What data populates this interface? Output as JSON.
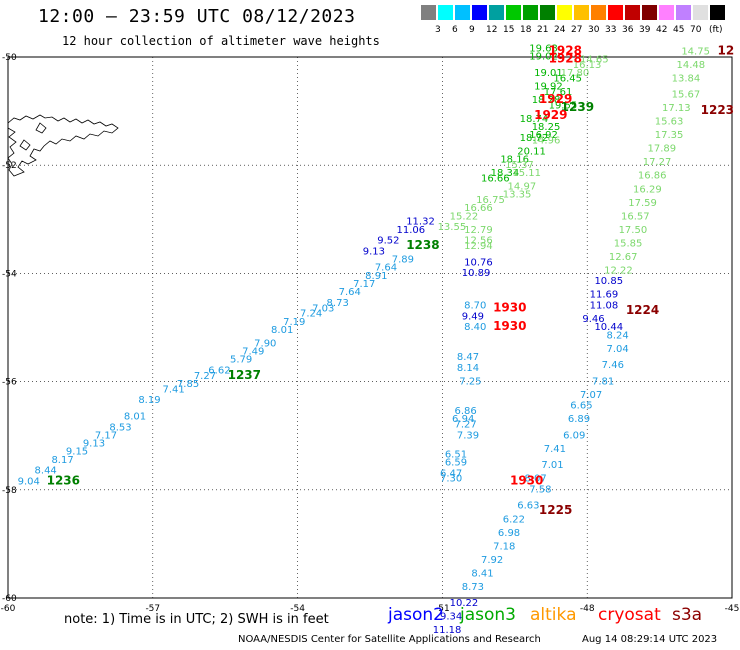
{
  "title": "12:00 – 23:59 UTC 08/12/2023",
  "subtitle": "12 hour collection of altimeter wave heights",
  "scale": {
    "unit": "(ft)",
    "colors": [
      "#808080",
      "#00ffff",
      "#00c0ff",
      "#0000ff",
      "#00a0a0",
      "#00c800",
      "#00a000",
      "#008000",
      "#ffff00",
      "#ffc000",
      "#ff8000",
      "#ff0000",
      "#c00000",
      "#800000",
      "#ff80ff",
      "#c080ff",
      "#e0e0e0",
      "#000000"
    ],
    "labels": [
      "3",
      "6",
      "9",
      "12",
      "15",
      "18",
      "21",
      "24",
      "27",
      "30",
      "33",
      "36",
      "39",
      "42",
      "45",
      "70"
    ]
  },
  "axes": {
    "lat_labels": [
      "-50",
      "-52",
      "-54",
      "-56",
      "-58",
      "-60"
    ],
    "lon_labels": [
      "-60",
      "-57",
      "-54",
      "-51",
      "-48",
      "-45"
    ]
  },
  "chart_data": {
    "type": "scatter",
    "projection": "lat-lon",
    "xlim": [
      -60,
      -45
    ],
    "ylim": [
      -60,
      -50
    ],
    "grid": true,
    "passes": [
      {
        "color": "#1e9be0",
        "points": [
          {
            "lon": -59.8,
            "lat": -57.9,
            "v": "9.04"
          },
          {
            "lon": -59.45,
            "lat": -57.7,
            "v": "8.44"
          },
          {
            "lon": -59.1,
            "lat": -57.5,
            "v": "8.17"
          },
          {
            "lon": -58.8,
            "lat": -57.35,
            "v": "9.15"
          },
          {
            "lon": -58.45,
            "lat": -57.2,
            "v": "9.13"
          },
          {
            "lon": -58.2,
            "lat": -57.05,
            "v": "7.17"
          },
          {
            "lon": -57.9,
            "lat": -56.9,
            "v": "8.53"
          },
          {
            "lon": -57.6,
            "lat": -56.7,
            "v": "8.01"
          },
          {
            "lon": -57.3,
            "lat": -56.4,
            "v": "8.19"
          },
          {
            "lon": -56.8,
            "lat": -56.2,
            "v": "7.41"
          },
          {
            "lon": -56.5,
            "lat": -56.1,
            "v": "7.85"
          },
          {
            "lon": -56.15,
            "lat": -55.95,
            "v": "7.27"
          },
          {
            "lon": -55.85,
            "lat": -55.85,
            "v": "6.62"
          },
          {
            "lon": -55.4,
            "lat": -55.65,
            "v": "5.79"
          },
          {
            "lon": -55.15,
            "lat": -55.5,
            "v": "7.49"
          },
          {
            "lon": -54.9,
            "lat": -55.35,
            "v": "7.90"
          },
          {
            "lon": -54.55,
            "lat": -55.1,
            "v": "8.01"
          },
          {
            "lon": -54.3,
            "lat": -54.95,
            "v": "7.19"
          },
          {
            "lon": -53.95,
            "lat": -54.8,
            "v": "7.24"
          },
          {
            "lon": -53.7,
            "lat": -54.7,
            "v": "7.03"
          },
          {
            "lon": -53.4,
            "lat": -54.6,
            "v": "8.73"
          },
          {
            "lon": -53.15,
            "lat": -54.4,
            "v": "7.64"
          },
          {
            "lon": -52.85,
            "lat": -54.25,
            "v": "7.17"
          },
          {
            "lon": -52.6,
            "lat": -54.1,
            "v": "8.91"
          },
          {
            "lon": -52.4,
            "lat": -53.95,
            "v": "7.64"
          },
          {
            "lon": -52.05,
            "lat": -53.8,
            "v": "7.89"
          }
        ]
      },
      {
        "color": "#1e9be0",
        "points": [
          {
            "lon": -50.55,
            "lat": -54.65,
            "v": "8.70"
          },
          {
            "lon": -50.55,
            "lat": -55.05,
            "v": "8.40"
          },
          {
            "lon": -50.7,
            "lat": -55.6,
            "v": "8.47"
          },
          {
            "lon": -50.7,
            "lat": -55.8,
            "v": "8.14"
          },
          {
            "lon": -50.65,
            "lat": -56.05,
            "v": "7.25"
          },
          {
            "lon": -50.75,
            "lat": -56.6,
            "v": "6.86"
          },
          {
            "lon": -50.8,
            "lat": -56.75,
            "v": "6.94"
          },
          {
            "lon": -50.75,
            "lat": -56.85,
            "v": "7.27"
          },
          {
            "lon": -50.7,
            "lat": -57.05,
            "v": "7.39"
          },
          {
            "lon": -50.95,
            "lat": -57.4,
            "v": "6.51"
          },
          {
            "lon": -50.95,
            "lat": -57.55,
            "v": "6.59"
          },
          {
            "lon": -51.05,
            "lat": -57.75,
            "v": "6.47"
          },
          {
            "lon": -51.05,
            "lat": -57.85,
            "v": "7.30"
          }
        ]
      },
      {
        "color": "#1e9be0",
        "points": [
          {
            "lon": -47.6,
            "lat": -55.2,
            "v": "8.24"
          },
          {
            "lon": -47.6,
            "lat": -55.45,
            "v": "7.04"
          },
          {
            "lon": -47.7,
            "lat": -55.75,
            "v": "7.46"
          },
          {
            "lon": -47.9,
            "lat": -56.05,
            "v": "7.81"
          },
          {
            "lon": -48.15,
            "lat": -56.3,
            "v": "7.07"
          },
          {
            "lon": -48.35,
            "lat": -56.5,
            "v": "6.65"
          },
          {
            "lon": -48.4,
            "lat": -56.75,
            "v": "6.89"
          },
          {
            "lon": -48.5,
            "lat": -57.05,
            "v": "6.09"
          },
          {
            "lon": -48.9,
            "lat": -57.3,
            "v": "7.41"
          },
          {
            "lon": -48.95,
            "lat": -57.6,
            "v": "7.01"
          },
          {
            "lon": -49.3,
            "lat": -57.85,
            "v": "8.07"
          },
          {
            "lon": -49.2,
            "lat": -58.05,
            "v": "7.58"
          },
          {
            "lon": -49.45,
            "lat": -58.35,
            "v": "6.63"
          },
          {
            "lon": -49.75,
            "lat": -58.6,
            "v": "6.22"
          },
          {
            "lon": -49.85,
            "lat": -58.85,
            "v": "6.98"
          },
          {
            "lon": -49.95,
            "lat": -59.1,
            "v": "7.18"
          },
          {
            "lon": -50.2,
            "lat": -59.35,
            "v": "7.92"
          },
          {
            "lon": -50.4,
            "lat": -59.6,
            "v": "8.41"
          },
          {
            "lon": -50.6,
            "lat": -59.85,
            "v": "8.73"
          }
        ]
      },
      {
        "color": "#0000cc",
        "points": [
          {
            "lon": -52.65,
            "lat": -53.65,
            "v": "9.13"
          },
          {
            "lon": -52.35,
            "lat": -53.45,
            "v": "9.52"
          },
          {
            "lon": -51.95,
            "lat": -53.25,
            "v": "11.06"
          },
          {
            "lon": -51.75,
            "lat": -53.1,
            "v": "11.32"
          },
          {
            "lon": -50.55,
            "lat": -53.85,
            "v": "10.76"
          },
          {
            "lon": -50.6,
            "lat": -54.05,
            "v": "10.89"
          },
          {
            "lon": -50.6,
            "lat": -54.85,
            "v": "9.49"
          },
          {
            "lon": -47.85,
            "lat": -54.2,
            "v": "10.85"
          },
          {
            "lon": -47.95,
            "lat": -54.45,
            "v": "11.69"
          },
          {
            "lon": -47.95,
            "lat": -54.65,
            "v": "11.08"
          },
          {
            "lon": -48.1,
            "lat": -54.9,
            "v": "9.46"
          },
          {
            "lon": -47.85,
            "lat": -55.05,
            "v": "10.44"
          },
          {
            "lon": -50.85,
            "lat": -60.15,
            "v": "10.22"
          },
          {
            "lon": -51.05,
            "lat": -60.4,
            "v": "9.34"
          },
          {
            "lon": -51.2,
            "lat": -60.65,
            "v": "11.18"
          }
        ]
      },
      {
        "color": "#00b400",
        "points": [
          {
            "lon": -49.2,
            "lat": -49.9,
            "v": "19.63"
          },
          {
            "lon": -49.2,
            "lat": -50.05,
            "v": "19.02"
          },
          {
            "lon": -49.1,
            "lat": -50.35,
            "v": "19.01"
          },
          {
            "lon": -49.1,
            "lat": -50.6,
            "v": "19.92"
          },
          {
            "lon": -49.15,
            "lat": -50.85,
            "v": "18.28"
          },
          {
            "lon": -48.7,
            "lat": -50.45,
            "v": "16.45"
          },
          {
            "lon": -48.9,
            "lat": -50.7,
            "v": "17.61"
          },
          {
            "lon": -48.8,
            "lat": -50.95,
            "v": "19.55"
          },
          {
            "lon": -49.4,
            "lat": -51.2,
            "v": "18.74"
          },
          {
            "lon": -49.15,
            "lat": -51.35,
            "v": "18.25"
          },
          {
            "lon": -49.2,
            "lat": -51.5,
            "v": "16.92"
          },
          {
            "lon": -49.4,
            "lat": -51.55,
            "v": "18.72"
          },
          {
            "lon": -49.45,
            "lat": -51.8,
            "v": "20.11"
          },
          {
            "lon": -49.8,
            "lat": -51.95,
            "v": "18.16"
          },
          {
            "lon": -50.0,
            "lat": -52.2,
            "v": "18.34"
          },
          {
            "lon": -50.2,
            "lat": -52.3,
            "v": "16.66"
          }
        ]
      },
      {
        "color": "#7cd86c",
        "points": [
          {
            "lon": -48.15,
            "lat": -50.1,
            "v": "14.65"
          },
          {
            "lon": -48.3,
            "lat": -50.2,
            "v": "16.13"
          },
          {
            "lon": -48.55,
            "lat": -50.35,
            "v": "17.80"
          },
          {
            "lon": -49.15,
            "lat": -51.6,
            "v": "14.96"
          },
          {
            "lon": -49.7,
            "lat": -52.05,
            "v": "15.37"
          },
          {
            "lon": -49.55,
            "lat": -52.2,
            "v": "15.11"
          },
          {
            "lon": -49.65,
            "lat": -52.45,
            "v": "14.97"
          },
          {
            "lon": -49.75,
            "lat": -52.6,
            "v": "13.35"
          },
          {
            "lon": -50.3,
            "lat": -52.7,
            "v": "16.75"
          },
          {
            "lon": -50.55,
            "lat": -52.85,
            "v": "16.66"
          },
          {
            "lon": -50.85,
            "lat": -53.0,
            "v": "15.22"
          },
          {
            "lon": -51.1,
            "lat": -53.2,
            "v": "13.55"
          },
          {
            "lon": -50.55,
            "lat": -53.25,
            "v": "12.79"
          },
          {
            "lon": -50.55,
            "lat": -53.45,
            "v": "12.56"
          },
          {
            "lon": -50.55,
            "lat": -53.55,
            "v": "12.94"
          },
          {
            "lon": -46.05,
            "lat": -49.95,
            "v": "14.75"
          },
          {
            "lon": -46.15,
            "lat": -50.2,
            "v": "14.48"
          },
          {
            "lon": -46.25,
            "lat": -50.45,
            "v": "13.84"
          },
          {
            "lon": -46.25,
            "lat": -50.75,
            "v": "15.67"
          },
          {
            "lon": -46.45,
            "lat": -51.0,
            "v": "17.13"
          },
          {
            "lon": -46.6,
            "lat": -51.25,
            "v": "15.63"
          },
          {
            "lon": -46.6,
            "lat": -51.5,
            "v": "17.35"
          },
          {
            "lon": -46.75,
            "lat": -51.75,
            "v": "17.89"
          },
          {
            "lon": -46.85,
            "lat": -52.0,
            "v": "17.27"
          },
          {
            "lon": -46.95,
            "lat": -52.25,
            "v": "16.86"
          },
          {
            "lon": -47.05,
            "lat": -52.5,
            "v": "16.29"
          },
          {
            "lon": -47.15,
            "lat": -52.75,
            "v": "17.59"
          },
          {
            "lon": -47.3,
            "lat": -53.0,
            "v": "16.57"
          },
          {
            "lon": -47.35,
            "lat": -53.25,
            "v": "17.50"
          },
          {
            "lon": -47.45,
            "lat": -53.5,
            "v": "15.85"
          },
          {
            "lon": -47.55,
            "lat": -53.75,
            "v": "12.67"
          },
          {
            "lon": -47.65,
            "lat": -54.0,
            "v": "12.22"
          }
        ]
      }
    ],
    "time_labels": [
      {
        "text": "1236",
        "color": "#008000",
        "lon": -59.2,
        "lat": -57.9
      },
      {
        "text": "1237",
        "color": "#008000",
        "lon": -55.45,
        "lat": -55.95
      },
      {
        "text": "1238",
        "color": "#008000",
        "lon": -51.75,
        "lat": -53.55
      },
      {
        "text": "1239",
        "color": "#008000",
        "lon": -48.55,
        "lat": -51.0
      },
      {
        "text": "1928",
        "color": "#ff0000",
        "lon": -48.8,
        "lat": -49.95
      },
      {
        "text": "1928",
        "color": "#ff0000",
        "lon": -48.8,
        "lat": -50.1
      },
      {
        "text": "1929",
        "color": "#ff0000",
        "lon": -49.0,
        "lat": -50.85
      },
      {
        "text": "1929",
        "color": "#ff0000",
        "lon": -49.1,
        "lat": -51.15
      },
      {
        "text": "1930",
        "color": "#ff0000",
        "lon": -49.95,
        "lat": -54.7
      },
      {
        "text": "1930",
        "color": "#ff0000",
        "lon": -49.95,
        "lat": -55.05
      },
      {
        "text": "1930",
        "color": "#ff0000",
        "lon": -49.6,
        "lat": -57.9
      },
      {
        "text": "1223",
        "color": "#8b0000",
        "lon": -45.65,
        "lat": -51.05
      },
      {
        "text": "1224",
        "color": "#8b0000",
        "lon": -47.2,
        "lat": -54.75
      },
      {
        "text": "1225",
        "color": "#8b0000",
        "lon": -49.0,
        "lat": -58.45
      },
      {
        "text": "12",
        "color": "#8b0000",
        "lon": -45.3,
        "lat": -49.95
      }
    ]
  },
  "footer": {
    "note": "note:  1) Time is in UTC;  2) SWH is in feet",
    "satellites": [
      {
        "name": "jason2",
        "color": "#0000ff"
      },
      {
        "name": "jason3",
        "color": "#00aa00"
      },
      {
        "name": "altika",
        "color": "#ff9900"
      },
      {
        "name": "cryosat",
        "color": "#ff0000"
      },
      {
        "name": "s3a",
        "color": "#8b0000"
      }
    ],
    "credit": "NOAA/NESDIS Center for Satellite Applications and Research",
    "timestamp": "Aug 14 08:29:14 UTC 2023"
  }
}
